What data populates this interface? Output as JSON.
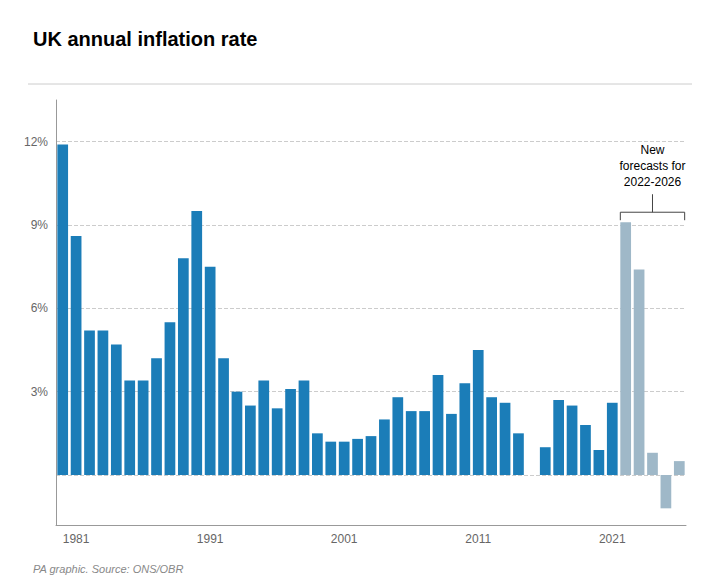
{
  "chart_data": {
    "type": "bar",
    "title": "UK annual inflation rate",
    "source": "PA graphic. Source: ONS/OBR",
    "annotation": "New\nforecasts for\n2022-2026",
    "categories": [
      null,
      "1981",
      null,
      null,
      null,
      null,
      null,
      null,
      null,
      null,
      null,
      "1991",
      null,
      null,
      null,
      null,
      null,
      null,
      null,
      null,
      null,
      "2001",
      null,
      null,
      null,
      null,
      null,
      null,
      null,
      null,
      null,
      "2011",
      null,
      null,
      null,
      null,
      null,
      null,
      null,
      null,
      null,
      "2021",
      null,
      null,
      null,
      null,
      null
    ],
    "values": [
      11.9,
      8.6,
      5.2,
      5.2,
      4.7,
      3.4,
      3.4,
      4.2,
      5.5,
      7.8,
      9.5,
      7.5,
      4.2,
      3.0,
      2.5,
      3.4,
      2.4,
      3.1,
      3.4,
      1.5,
      1.2,
      1.2,
      1.3,
      1.4,
      2.0,
      2.8,
      2.3,
      2.3,
      3.6,
      2.2,
      3.3,
      4.5,
      2.8,
      2.6,
      1.5,
      0.0,
      1.0,
      2.7,
      2.5,
      1.8,
      0.9,
      2.6,
      9.1,
      7.4,
      0.8,
      -1.2,
      0.5
    ],
    "colors": [
      "#1b7db8",
      "#1b7db8",
      "#1b7db8",
      "#1b7db8",
      "#1b7db8",
      "#1b7db8",
      "#1b7db8",
      "#1b7db8",
      "#1b7db8",
      "#1b7db8",
      "#1b7db8",
      "#1b7db8",
      "#1b7db8",
      "#1b7db8",
      "#1b7db8",
      "#1b7db8",
      "#1b7db8",
      "#1b7db8",
      "#1b7db8",
      "#1b7db8",
      "#1b7db8",
      "#1b7db8",
      "#1b7db8",
      "#1b7db8",
      "#1b7db8",
      "#1b7db8",
      "#1b7db8",
      "#1b7db8",
      "#1b7db8",
      "#1b7db8",
      "#1b7db8",
      "#1b7db8",
      "#1b7db8",
      "#1b7db8",
      "#1b7db8",
      "#1b7db8",
      "#1b7db8",
      "#1b7db8",
      "#1b7db8",
      "#1b7db8",
      "#1b7db8",
      "#1b7db8",
      "#9fb8c8",
      "#9fb8c8",
      "#9fb8c8",
      "#9fb8c8",
      "#9fb8c8"
    ],
    "ylim": [
      -1.8,
      13.5
    ],
    "yticks": [
      {
        "value": 0,
        "label": ""
      },
      {
        "value": 3,
        "label": "3%"
      },
      {
        "value": 6,
        "label": "6%"
      },
      {
        "value": 9,
        "label": "9%"
      },
      {
        "value": 12,
        "label": "12%"
      }
    ],
    "grid": true
  }
}
